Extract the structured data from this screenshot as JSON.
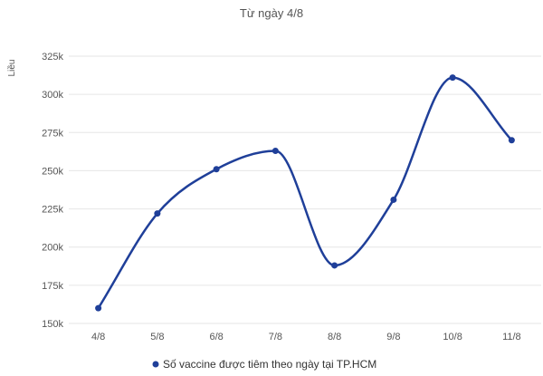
{
  "chart_data": {
    "type": "line",
    "title": "Từ ngày 4/8",
    "ylabel": "Liều",
    "xlabel": "",
    "categories": [
      "4/8",
      "5/8",
      "6/8",
      "7/8",
      "8/8",
      "9/8",
      "10/8",
      "11/8"
    ],
    "series": [
      {
        "name": "Số vaccine được tiêm theo ngày tại TP.HCM",
        "values": [
          160000,
          222000,
          251000,
          263000,
          188000,
          231000,
          311000,
          270000
        ]
      }
    ],
    "ylim": [
      150000,
      325000
    ],
    "yticks": [
      150000,
      175000,
      200000,
      225000,
      250000,
      275000,
      300000,
      325000
    ],
    "ytick_labels": [
      "150k",
      "175k",
      "200k",
      "225k",
      "250k",
      "275k",
      "300k",
      "325k"
    ],
    "grid": "horizontal",
    "smooth": true,
    "legend_position": "bottom",
    "colors": {
      "series": "#1f3f99",
      "grid": "#e6e6e6",
      "text": "#555555"
    }
  }
}
